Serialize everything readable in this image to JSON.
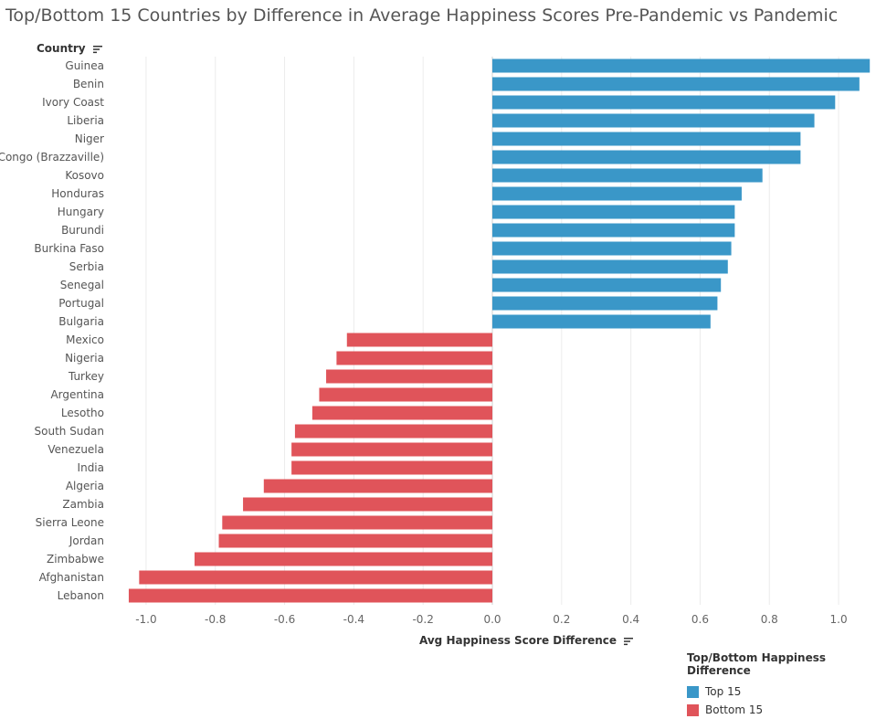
{
  "chart_data": {
    "type": "bar",
    "orientation": "horizontal",
    "title": "Top/Bottom 15 Countries by Difference in Average Happiness Scores Pre-Pandemic vs Pandemic",
    "ylabel": "Country",
    "xlabel": "Avg Happiness Score Difference",
    "xlim": [
      -1.1,
      1.1
    ],
    "xticks": [
      "-1.0",
      "-0.8",
      "-0.6",
      "-0.4",
      "-0.2",
      "0.0",
      "0.2",
      "0.4",
      "0.6",
      "0.8",
      "1.0"
    ],
    "grid": "vertical",
    "legend": {
      "title": "Top/Bottom Happiness Difference",
      "placement": "bottom-right",
      "items": [
        {
          "label": "Top 15",
          "color": "#3a97c8"
        },
        {
          "label": "Bottom 15",
          "color": "#e0545a"
        }
      ]
    },
    "categories": [
      "Guinea",
      "Benin",
      "Ivory Coast",
      "Liberia",
      "Niger",
      "Congo (Brazzaville)",
      "Kosovo",
      "Honduras",
      "Hungary",
      "Burundi",
      "Burkina Faso",
      "Serbia",
      "Senegal",
      "Portugal",
      "Bulgaria",
      "Mexico",
      "Nigeria",
      "Turkey",
      "Argentina",
      "Lesotho",
      "South Sudan",
      "Venezuela",
      "India",
      "Algeria",
      "Zambia",
      "Sierra Leone",
      "Jordan",
      "Zimbabwe",
      "Afghanistan",
      "Lebanon"
    ],
    "values": [
      1.09,
      1.06,
      0.99,
      0.93,
      0.89,
      0.89,
      0.78,
      0.72,
      0.7,
      0.7,
      0.69,
      0.68,
      0.66,
      0.65,
      0.63,
      -0.42,
      -0.45,
      -0.48,
      -0.5,
      -0.52,
      -0.57,
      -0.58,
      -0.58,
      -0.66,
      -0.72,
      -0.78,
      -0.79,
      -0.86,
      -1.02,
      -1.05
    ],
    "groups": [
      "Top 15",
      "Top 15",
      "Top 15",
      "Top 15",
      "Top 15",
      "Top 15",
      "Top 15",
      "Top 15",
      "Top 15",
      "Top 15",
      "Top 15",
      "Top 15",
      "Top 15",
      "Top 15",
      "Top 15",
      "Bottom 15",
      "Bottom 15",
      "Bottom 15",
      "Bottom 15",
      "Bottom 15",
      "Bottom 15",
      "Bottom 15",
      "Bottom 15",
      "Bottom 15",
      "Bottom 15",
      "Bottom 15",
      "Bottom 15",
      "Bottom 15",
      "Bottom 15",
      "Bottom 15"
    ]
  }
}
